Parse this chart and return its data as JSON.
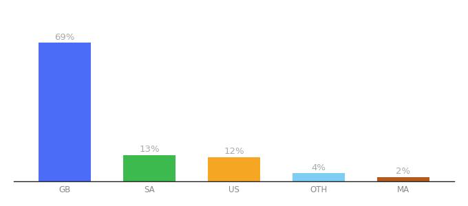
{
  "categories": [
    "GB",
    "SA",
    "US",
    "OTH",
    "MA"
  ],
  "values": [
    69,
    13,
    12,
    4,
    2
  ],
  "labels": [
    "69%",
    "13%",
    "12%",
    "4%",
    "2%"
  ],
  "bar_colors": [
    "#4a6cf7",
    "#3dba4e",
    "#f5a623",
    "#7ecef4",
    "#b5591c"
  ],
  "ylim": [
    0,
    78
  ],
  "background_color": "#ffffff",
  "label_color": "#aaaaaa",
  "label_fontsize": 9.5,
  "tick_fontsize": 8.5,
  "tick_color": "#888888",
  "bar_width": 0.62,
  "bottom_spine_color": "#222222"
}
